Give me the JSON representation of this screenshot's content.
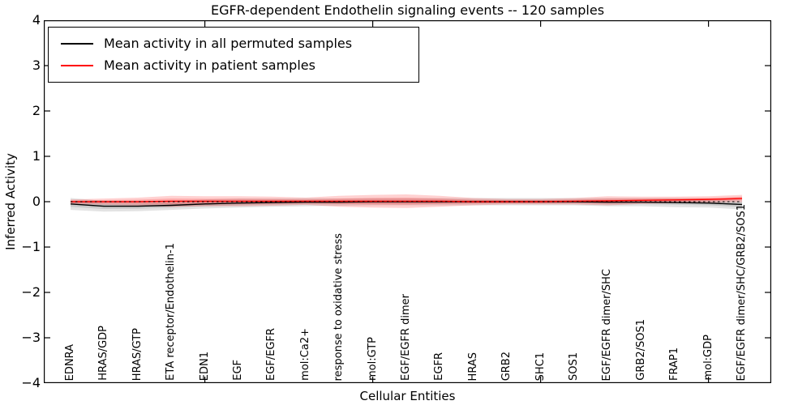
{
  "title": "EGFR-dependent Endothelin signaling events -- 120 samples",
  "axes": {
    "xlabel": "Cellular Entities",
    "ylabel": "Inferred Activity",
    "ytick_values": [
      4,
      3,
      2,
      1,
      0,
      -1,
      -2,
      -3,
      -4
    ],
    "ytick_labels": [
      "4",
      "3",
      "2",
      "1",
      "0",
      "−1",
      "−2",
      "−3",
      "−4"
    ],
    "xtick_values": [
      5,
      10,
      15,
      20
    ],
    "ylim": [
      -4,
      4
    ],
    "grid": false
  },
  "legend": {
    "position": "upper left",
    "items": [
      {
        "label": "Mean activity in all permuted samples",
        "color": "#000000"
      },
      {
        "label": "Mean activity in patient samples",
        "color": "#ff0000"
      }
    ]
  },
  "colors": {
    "frame": "#000000",
    "background": "#ffffff",
    "permuted_line": "#000000",
    "patient_line": "#ff0000",
    "permuted_band": "rgba(0,0,0,0.11)",
    "patient_band": "rgba(255,0,0,0.18)",
    "zero_line": "#000000"
  },
  "chart_data": {
    "type": "line",
    "title": "EGFR-dependent Endothelin signaling events -- 120 samples",
    "xlabel": "Cellular Entities",
    "ylabel": "Inferred Activity",
    "ylim": [
      -4,
      4
    ],
    "legend_position": "upper left",
    "grid": false,
    "zero_line": "dashed black at y=0",
    "categories": [
      "EDNRA",
      "HRAS/GDP",
      "HRAS/GTP",
      "ETA receptor/Endothelin-1",
      "EDN1",
      "EGF",
      "EGF/EGFR",
      "mol:Ca2+",
      "response to oxidative stress",
      "mol:GTP",
      "EGF/EGFR dimer",
      "EGFR",
      "HRAS",
      "GRB2",
      "SHC1",
      "SOS1",
      "EGF/EGFR dimer/SHC",
      "GRB2/SOS1",
      "FRAP1",
      "mol:GDP",
      "EGF/EGFR dimer/SHC/GRB2/SOS1"
    ],
    "series": [
      {
        "name": "Mean activity in all permuted samples",
        "color": "#000000",
        "values": [
          -0.05,
          -0.1,
          -0.1,
          -0.08,
          -0.05,
          -0.03,
          -0.02,
          -0.01,
          -0.01,
          0,
          0,
          0,
          0,
          0,
          0,
          0,
          -0.01,
          -0.01,
          -0.02,
          -0.03,
          -0.06
        ],
        "std": [
          0.13,
          0.12,
          0.11,
          0.1,
          0.1,
          0.1,
          0.09,
          0.09,
          0.08,
          0.08,
          0.08,
          0.08,
          0.08,
          0.08,
          0.08,
          0.08,
          0.09,
          0.09,
          0.1,
          0.1,
          0.11
        ]
      },
      {
        "name": "Mean activity in patient samples",
        "color": "#ff0000",
        "values": [
          0,
          0,
          0,
          0.01,
          0.01,
          0.01,
          0.01,
          0.01,
          0.01,
          0.01,
          0.01,
          0.01,
          0,
          0,
          0,
          0.01,
          0.02,
          0.03,
          0.04,
          0.05,
          0.07
        ],
        "std": [
          0.05,
          0.07,
          0.09,
          0.12,
          0.11,
          0.11,
          0.1,
          0.08,
          0.12,
          0.14,
          0.15,
          0.12,
          0.08,
          0.06,
          0.06,
          0.07,
          0.1,
          0.08,
          0.07,
          0.07,
          0.08
        ]
      }
    ]
  }
}
